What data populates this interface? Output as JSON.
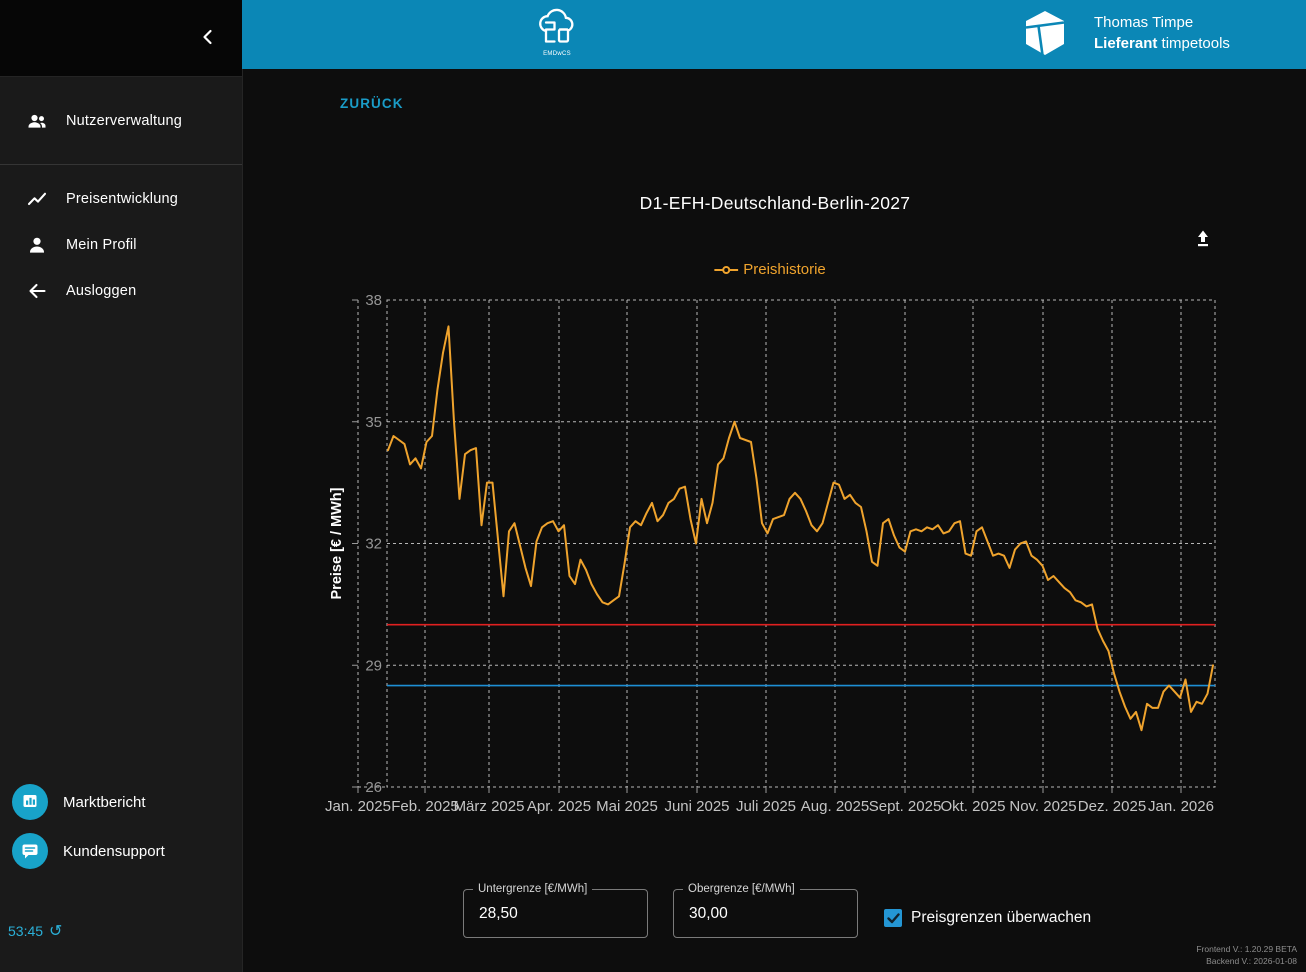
{
  "theme": {
    "header_blue": "#0b87b6",
    "accent_cyan": "#1a9cc7",
    "sidebar_icon_circle": "#18a3c9",
    "checkbox_blue": "#2496d4"
  },
  "header": {
    "center_logo_caption": "EMDwCS",
    "user_name": "Thomas Timpe",
    "user_role_bold": "Lieferant",
    "user_company": "timpetools"
  },
  "sidebar": {
    "collapse_icon": "chevron-left",
    "nav": [
      {
        "label": "Nutzerverwaltung",
        "icon": "people"
      },
      {
        "label": "Preisentwicklung",
        "icon": "trending-up"
      },
      {
        "label": "Mein Profil",
        "icon": "person"
      },
      {
        "label": "Ausloggen",
        "icon": "arrow-left"
      }
    ],
    "footer": [
      {
        "label": "Marktbericht",
        "icon": "bar-chart"
      },
      {
        "label": "Kundensupport",
        "icon": "chat"
      }
    ],
    "session_timer": "53:45"
  },
  "page": {
    "back_label": "ZURÜCK",
    "versions": {
      "frontend": "Frontend V.: 1.20.29 BETA",
      "backend": "Backend V.: 2026-01-08"
    }
  },
  "controls": {
    "lower_bound": {
      "label": "Untergrenze [€/MWh]",
      "value": "28,50"
    },
    "upper_bound": {
      "label": "Obergrenze [€/MWh]",
      "value": "30,00"
    },
    "watch_checkbox": {
      "label": "Preisgrenzen überwachen",
      "checked": true
    }
  },
  "chart_data": {
    "type": "line",
    "title": "D1-EFH-Deutschland-Berlin-2027",
    "ylabel": "Preise [€ / MWh]",
    "ylim": [
      26,
      38
    ],
    "yticks": [
      26,
      29,
      32,
      35,
      38
    ],
    "x_ticks": [
      "Jan. 2025",
      "Feb. 2025",
      "März 2025",
      "Apr. 2025",
      "Mai 2025",
      "Juni 2025",
      "Juli 2025",
      "Aug. 2025",
      "Sept. 2025",
      "Okt. 2025",
      "Nov. 2025",
      "Dez. 2025",
      "Jan. 2026"
    ],
    "grid": "dashed",
    "legend_position": "top-center",
    "limit_lines": [
      {
        "name": "Obergrenze",
        "value": 30.0,
        "color": "#e02020"
      },
      {
        "name": "Untergrenze",
        "value": 28.5,
        "color": "#1e8fd5"
      }
    ],
    "series": [
      {
        "name": "Preishistorie",
        "color": "#efa32d",
        "values": [
          34.3,
          34.65,
          34.55,
          34.45,
          33.95,
          34.1,
          33.85,
          34.5,
          34.65,
          35.8,
          36.7,
          37.35,
          35.0,
          33.1,
          34.2,
          34.3,
          34.35,
          32.45,
          33.5,
          33.5,
          32.1,
          30.7,
          32.3,
          32.5,
          31.95,
          31.4,
          30.95,
          32.05,
          32.4,
          32.5,
          32.55,
          32.3,
          32.45,
          31.2,
          31.0,
          31.6,
          31.35,
          31.0,
          30.75,
          30.55,
          30.5,
          30.6,
          30.7,
          31.5,
          32.4,
          32.55,
          32.45,
          32.75,
          33.0,
          32.55,
          32.7,
          33.0,
          33.1,
          33.35,
          33.4,
          32.6,
          32.0,
          33.1,
          32.5,
          33.0,
          33.95,
          34.1,
          34.6,
          35.0,
          34.6,
          34.55,
          34.5,
          33.6,
          32.5,
          32.25,
          32.6,
          32.65,
          32.7,
          33.1,
          33.25,
          33.1,
          32.8,
          32.45,
          32.3,
          32.5,
          33.0,
          33.5,
          33.45,
          33.1,
          33.2,
          33.0,
          32.9,
          32.3,
          31.55,
          31.45,
          32.5,
          32.6,
          32.2,
          31.9,
          31.8,
          32.3,
          32.35,
          32.3,
          32.4,
          32.35,
          32.45,
          32.25,
          32.3,
          32.5,
          32.55,
          31.75,
          31.7,
          32.3,
          32.4,
          32.05,
          31.7,
          31.75,
          31.7,
          31.4,
          31.85,
          32.0,
          32.05,
          31.7,
          31.6,
          31.45,
          31.1,
          31.2,
          31.05,
          30.9,
          30.8,
          30.6,
          30.55,
          30.45,
          30.5,
          29.9,
          29.6,
          29.35,
          28.8,
          28.35,
          27.98,
          27.68,
          27.85,
          27.4,
          28.05,
          27.95,
          27.95,
          28.35,
          28.5,
          28.35,
          28.2,
          28.65,
          27.85,
          28.1,
          28.05,
          28.3,
          29.0
        ]
      }
    ]
  }
}
